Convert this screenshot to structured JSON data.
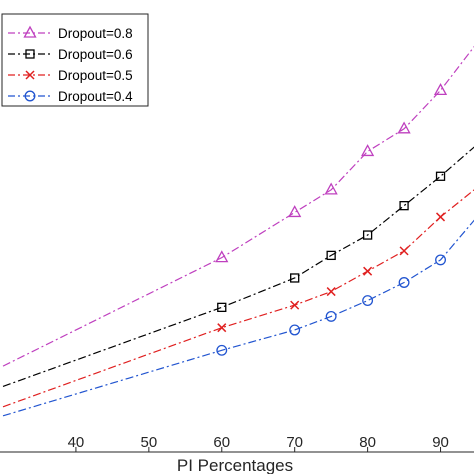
{
  "chart_data": {
    "type": "line",
    "title": "",
    "xlabel": "PI Percentages",
    "ylabel": "",
    "xlim": [
      30,
      95
    ],
    "ylim": [
      0,
      1
    ],
    "x_ticks": [
      40,
      50,
      60,
      70,
      80,
      90
    ],
    "grid": false,
    "legend_position": "top-left",
    "series": [
      {
        "name": "Dropout=0.8",
        "color": "#bf40bf",
        "marker": "triangle",
        "dash": "dash-dot",
        "x": [
          30,
          60,
          70,
          75,
          80,
          85,
          90,
          95
        ],
        "y": [
          0.19,
          0.43,
          0.53,
          0.58,
          0.665,
          0.715,
          0.8,
          0.905
        ]
      },
      {
        "name": "Dropout=0.6",
        "color": "#000000",
        "marker": "square",
        "dash": "dash-dot",
        "x": [
          30,
          60,
          70,
          75,
          80,
          85,
          90,
          95
        ],
        "y": [
          0.145,
          0.32,
          0.385,
          0.435,
          0.48,
          0.545,
          0.61,
          0.68
        ]
      },
      {
        "name": "Dropout=0.5",
        "color": "#e02020",
        "marker": "x",
        "dash": "dash-dot",
        "x": [
          30,
          60,
          70,
          75,
          80,
          85,
          90,
          95
        ],
        "y": [
          0.1,
          0.275,
          0.325,
          0.355,
          0.4,
          0.445,
          0.52,
          0.585
        ]
      },
      {
        "name": "Dropout=0.4",
        "color": "#2255d0",
        "marker": "circle",
        "dash": "dash-dot",
        "x": [
          30,
          60,
          70,
          75,
          80,
          85,
          90,
          95
        ],
        "y": [
          0.08,
          0.225,
          0.27,
          0.3,
          0.335,
          0.375,
          0.425,
          0.52
        ]
      }
    ]
  }
}
